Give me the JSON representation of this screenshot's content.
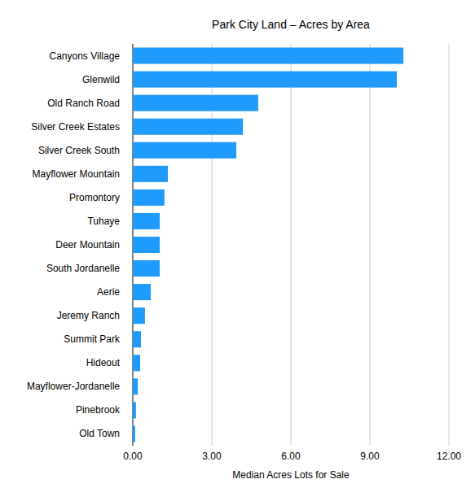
{
  "chart_data": {
    "type": "bar",
    "orientation": "horizontal",
    "title": "Park City Land – Acres by Area",
    "x_label": "Median Acres Lots for Sale",
    "categories": [
      "Canyons Village",
      "Glenwild",
      "Old Ranch Road",
      "Silver Creek Estates",
      "Silver Creek South",
      "Mayflower Mountain",
      "Promontory",
      "Tuhaye",
      "Deer Mountain",
      "South Jordanelle",
      "Aerie",
      "Jeremy Ranch",
      "Summit Park",
      "Hideout",
      "Mayflower-Jordanelle",
      "Pinebrook",
      "Old Town"
    ],
    "values": [
      10.27,
      10.02,
      4.76,
      4.18,
      3.93,
      1.33,
      1.2,
      1.02,
      1.02,
      1.02,
      0.68,
      0.46,
      0.31,
      0.28,
      0.19,
      0.12,
      0.09
    ],
    "color": "#1e9bfc",
    "xlim": [
      0,
      12
    ],
    "xticks": [
      {
        "value": 0,
        "label": "0.00"
      },
      {
        "value": 3,
        "label": "3.00"
      },
      {
        "value": 6,
        "label": "6.00"
      },
      {
        "value": 9,
        "label": "9.00"
      },
      {
        "value": 12,
        "label": "12.00"
      }
    ],
    "grid": true
  }
}
